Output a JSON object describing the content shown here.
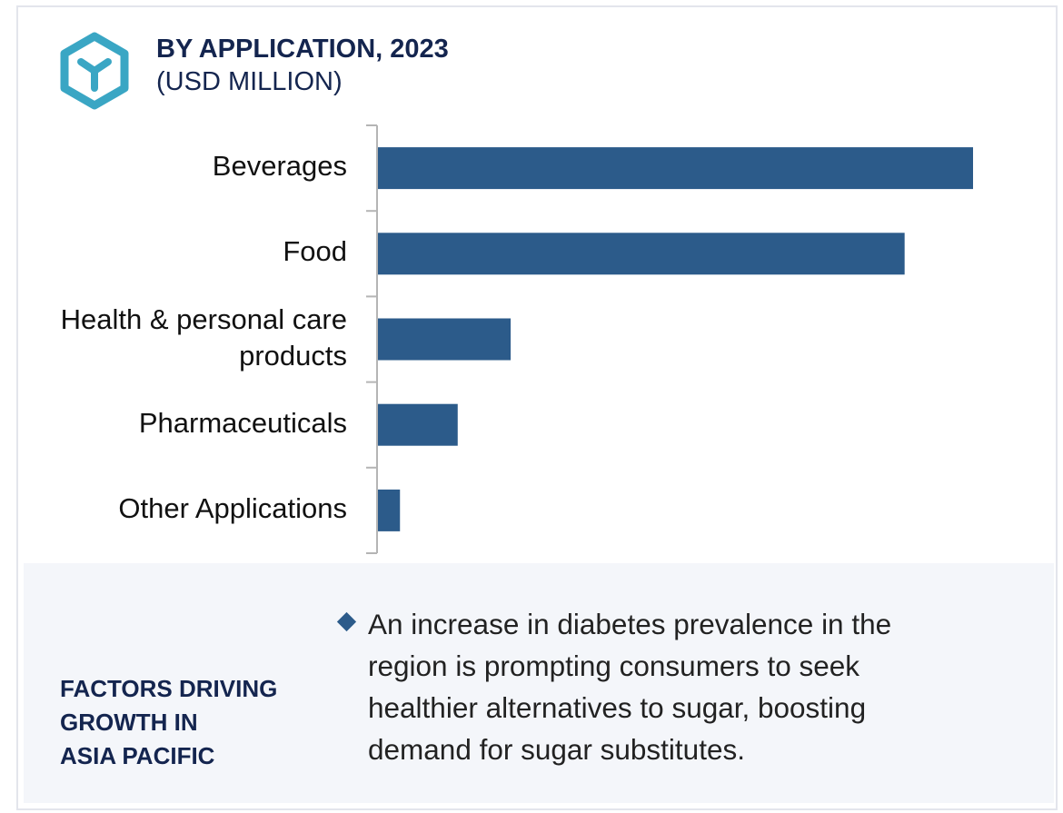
{
  "header": {
    "title": "BY APPLICATION, 2023",
    "subtitle": "(USD MILLION)",
    "icon": "hexagon-y-icon"
  },
  "chart_data": {
    "type": "bar",
    "orientation": "horizontal",
    "title": "BY APPLICATION, 2023",
    "subtitle": "(USD MILLION)",
    "categories": [
      "Beverages",
      "Food",
      "Health & personal care products",
      "Pharmaceuticals",
      "Other Applications"
    ],
    "values": [
      100,
      88.5,
      22.3,
      13.4,
      3.7
    ],
    "value_note": "relative bar lengths (no value axis printed), Beverages = 100",
    "xlim": [
      0,
      100
    ],
    "grid": false,
    "bar_color": "#2c5b8a"
  },
  "factors": {
    "icon": "line-chart-icon",
    "title_lines": [
      "FACTORS DRIVING",
      "GROWTH IN",
      "ASIA PACIFIC"
    ],
    "bullet": "An increase in diabetes prevalence in the region is prompting consumers to seek healthier alternatives to sugar, boosting demand for sugar substitutes."
  },
  "colors": {
    "accent": "#3aa6c4",
    "heading": "#14254f",
    "bar": "#2c5b8a",
    "panel": "#f4f6fa"
  }
}
